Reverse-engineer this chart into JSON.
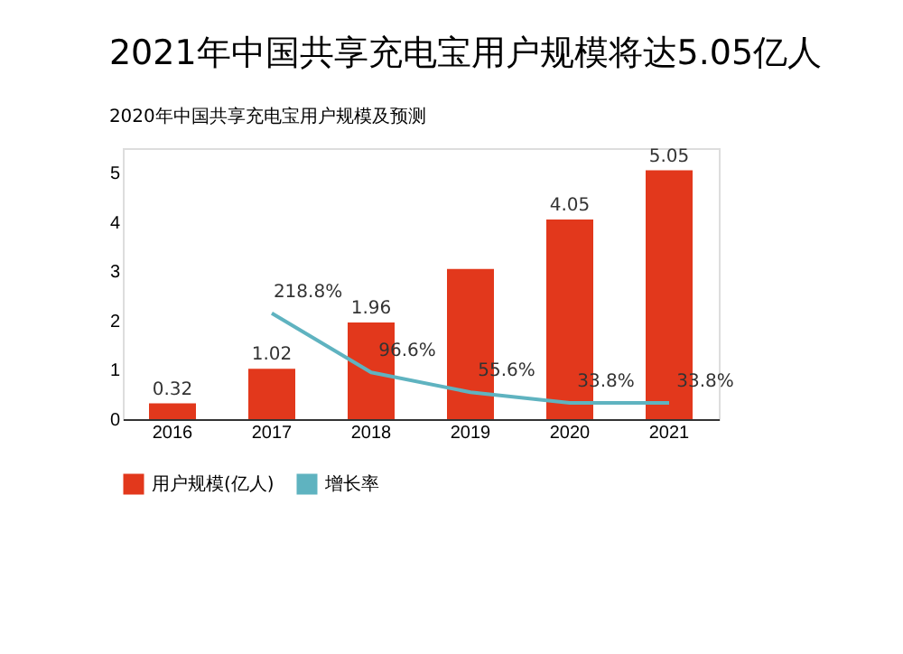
{
  "chart_data": {
    "type": "bar",
    "title": "2021年中国共享充电宝用户规模将达5.05亿人",
    "subtitle": "2020年中国共享充电宝用户规模及预测",
    "categories": [
      "2016",
      "2017",
      "2018",
      "2019",
      "2020",
      "2021"
    ],
    "series": [
      {
        "name": "用户规模(亿人)",
        "color": "#e2381c",
        "values": [
          0.32,
          1.02,
          1.96,
          3.05,
          4.05,
          5.05
        ],
        "value_labels": [
          "0.32",
          "1.02",
          "1.96",
          null,
          "4.05",
          "5.05"
        ]
      },
      {
        "name": "增长率",
        "type": "line",
        "axis": "y2",
        "color": "#5fb3c0",
        "values": [
          null,
          218.8,
          96.6,
          55.6,
          33.8,
          33.8
        ],
        "value_labels": [
          null,
          "218.8%",
          "96.6%",
          "55.6%",
          "33.8%",
          "33.8%"
        ]
      }
    ],
    "ylim": [
      0,
      5.5
    ],
    "yticks": [
      0,
      1,
      2,
      3,
      4,
      5
    ],
    "y2lim": [
      0,
      560
    ],
    "grid": false,
    "legend": "bottom",
    "marker": "none"
  }
}
